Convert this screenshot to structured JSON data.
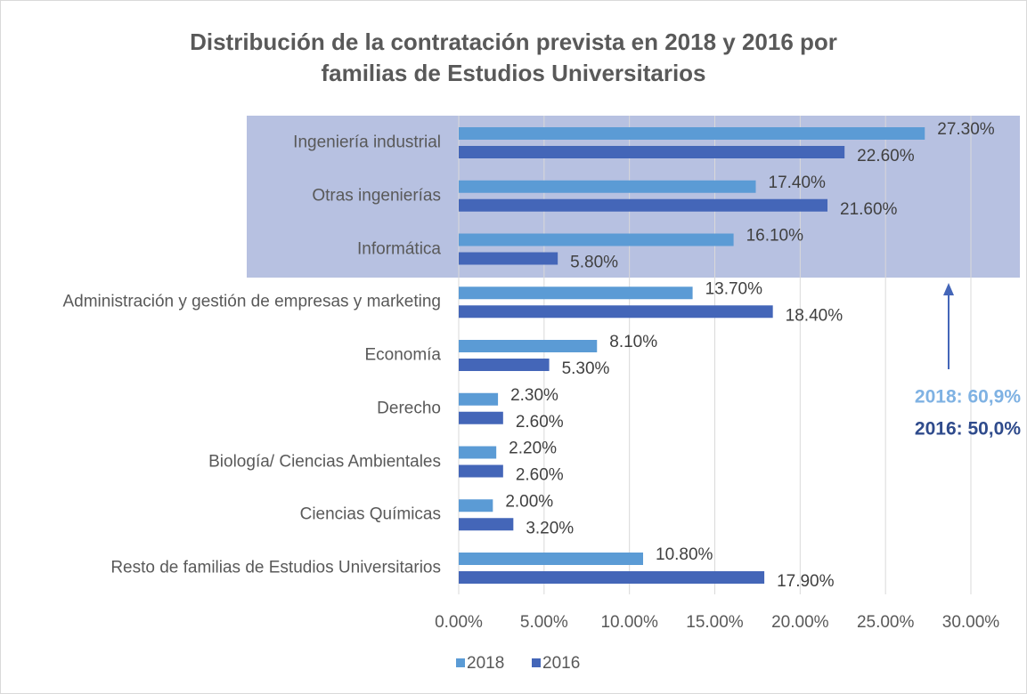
{
  "chart_data": {
    "type": "bar",
    "orientation": "horizontal",
    "title": "Distribución de la contratación prevista en 2018 y 2016 por familias de Estudios Universitarios",
    "categories": [
      "Ingeniería industrial",
      "Otras ingenierías",
      "Informática",
      "Administración y gestión de empresas y marketing",
      "Economía",
      "Derecho",
      "Biología/ Ciencias Ambientales",
      "Ciencias Químicas",
      "Resto de familias de Estudios Universitarios"
    ],
    "series": [
      {
        "name": "2018",
        "color": "#5b9bd5",
        "values": [
          27.3,
          17.4,
          16.1,
          13.7,
          8.1,
          2.3,
          2.2,
          2.0,
          10.8
        ],
        "value_labels": [
          "27.30%",
          "17.40%",
          "16.10%",
          "13.70%",
          "8.10%",
          "2.30%",
          "2.20%",
          "2.00%",
          "10.80%"
        ]
      },
      {
        "name": "2016",
        "color": "#4466b8",
        "values": [
          22.6,
          21.6,
          5.8,
          18.4,
          5.3,
          2.6,
          2.6,
          3.2,
          17.9
        ],
        "value_labels": [
          "22.60%",
          "21.60%",
          "5.80%",
          "18.40%",
          "5.30%",
          "2.60%",
          "2.60%",
          "3.20%",
          "17.90%"
        ]
      }
    ],
    "xlim": [
      0,
      30
    ],
    "xticks": [
      {
        "value": 0,
        "label": "0.00%"
      },
      {
        "value": 5,
        "label": "5.00%"
      },
      {
        "value": 10,
        "label": "10.00%"
      },
      {
        "value": 15,
        "label": "15.00%"
      },
      {
        "value": 20,
        "label": "20.00%"
      },
      {
        "value": 25,
        "label": "25.00%"
      },
      {
        "value": 30,
        "label": "30.00%"
      }
    ],
    "grid": true,
    "legend": "bottom",
    "annotations": [
      {
        "text": "2018: 60,9%",
        "color": "#7fb2e3"
      },
      {
        "text": "2016: 50,0%",
        "color": "#2f4b8c"
      }
    ]
  }
}
